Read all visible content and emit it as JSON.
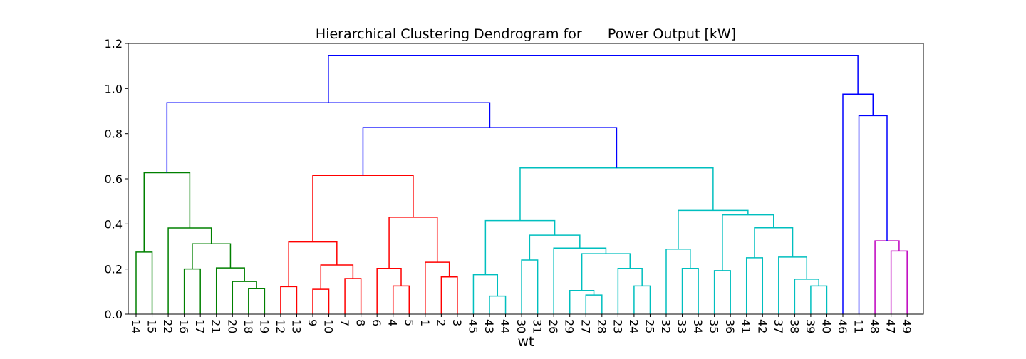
{
  "chart_data": {
    "type": "dendrogram",
    "title": "Hierarchical Clustering Dendrogram for      Power Output [kW]",
    "xlabel": "wt",
    "ylabel": "",
    "ylim": [
      0,
      1.2
    ],
    "yticks": [
      0.0,
      0.2,
      0.4,
      0.6,
      0.8,
      1.0,
      1.2
    ],
    "grid": false,
    "leaves": [
      "14",
      "15",
      "22",
      "16",
      "17",
      "21",
      "20",
      "18",
      "19",
      "12",
      "13",
      "9",
      "10",
      "7",
      "8",
      "6",
      "4",
      "5",
      "1",
      "2",
      "3",
      "45",
      "43",
      "44",
      "30",
      "31",
      "26",
      "29",
      "27",
      "28",
      "23",
      "24",
      "25",
      "32",
      "33",
      "34",
      "35",
      "36",
      "41",
      "42",
      "37",
      "38",
      "39",
      "40",
      "46",
      "11",
      "48",
      "47",
      "49"
    ],
    "colors": {
      "green": "#008000",
      "red": "#ff0000",
      "cyan": "#00bfbf",
      "magenta": "#bf00bf",
      "blue": "#0000ff"
    },
    "merges": [
      {
        "id": "A",
        "left": "14",
        "right": "15",
        "height": 0.275,
        "color": "green"
      },
      {
        "id": "B",
        "left": "16",
        "right": "17",
        "height": 0.2,
        "color": "green"
      },
      {
        "id": "C",
        "left": "18",
        "right": "19",
        "height": 0.113,
        "color": "green"
      },
      {
        "id": "D",
        "left": "20",
        "right": "C",
        "height": 0.145,
        "color": "green"
      },
      {
        "id": "E",
        "left": "21",
        "right": "D",
        "height": 0.205,
        "color": "green"
      },
      {
        "id": "F",
        "left": "B",
        "right": "E",
        "height": 0.312,
        "color": "green"
      },
      {
        "id": "G",
        "left": "22",
        "right": "F",
        "height": 0.382,
        "color": "green"
      },
      {
        "id": "H",
        "left": "A",
        "right": "G",
        "height": 0.627,
        "color": "green"
      },
      {
        "id": "I",
        "left": "12",
        "right": "13",
        "height": 0.122,
        "color": "red"
      },
      {
        "id": "J",
        "left": "9",
        "right": "10",
        "height": 0.11,
        "color": "red"
      },
      {
        "id": "K",
        "left": "7",
        "right": "8",
        "height": 0.158,
        "color": "red"
      },
      {
        "id": "L",
        "left": "J",
        "right": "K",
        "height": 0.218,
        "color": "red"
      },
      {
        "id": "M",
        "left": "I",
        "right": "L",
        "height": 0.32,
        "color": "red"
      },
      {
        "id": "N",
        "left": "4",
        "right": "5",
        "height": 0.125,
        "color": "red"
      },
      {
        "id": "O",
        "left": "6",
        "right": "N",
        "height": 0.203,
        "color": "red"
      },
      {
        "id": "P",
        "left": "2",
        "right": "3",
        "height": 0.165,
        "color": "red"
      },
      {
        "id": "Q",
        "left": "1",
        "right": "P",
        "height": 0.23,
        "color": "red"
      },
      {
        "id": "R",
        "left": "O",
        "right": "Q",
        "height": 0.43,
        "color": "red"
      },
      {
        "id": "S",
        "left": "M",
        "right": "R",
        "height": 0.615,
        "color": "red"
      },
      {
        "id": "T",
        "left": "43",
        "right": "44",
        "height": 0.08,
        "color": "cyan"
      },
      {
        "id": "U",
        "left": "45",
        "right": "T",
        "height": 0.175,
        "color": "cyan"
      },
      {
        "id": "V",
        "left": "30",
        "right": "31",
        "height": 0.24,
        "color": "cyan"
      },
      {
        "id": "W",
        "left": "27",
        "right": "28",
        "height": 0.085,
        "color": "cyan"
      },
      {
        "id": "X",
        "left": "29",
        "right": "W",
        "height": 0.105,
        "color": "cyan"
      },
      {
        "id": "Y",
        "left": "24",
        "right": "25",
        "height": 0.125,
        "color": "cyan"
      },
      {
        "id": "Z",
        "left": "23",
        "right": "Y",
        "height": 0.203,
        "color": "cyan"
      },
      {
        "id": "AA",
        "left": "X",
        "right": "Z",
        "height": 0.268,
        "color": "cyan"
      },
      {
        "id": "AB",
        "left": "26",
        "right": "AA",
        "height": 0.293,
        "color": "cyan"
      },
      {
        "id": "AC",
        "left": "V",
        "right": "AB",
        "height": 0.35,
        "color": "cyan"
      },
      {
        "id": "AD",
        "left": "U",
        "right": "AC",
        "height": 0.415,
        "color": "cyan"
      },
      {
        "id": "AE",
        "left": "33",
        "right": "34",
        "height": 0.203,
        "color": "cyan"
      },
      {
        "id": "AF",
        "left": "32",
        "right": "AE",
        "height": 0.288,
        "color": "cyan"
      },
      {
        "id": "AG",
        "left": "35",
        "right": "36",
        "height": 0.193,
        "color": "cyan"
      },
      {
        "id": "AH",
        "left": "41",
        "right": "42",
        "height": 0.25,
        "color": "cyan"
      },
      {
        "id": "AI",
        "left": "39",
        "right": "40",
        "height": 0.125,
        "color": "cyan"
      },
      {
        "id": "AJ",
        "left": "38",
        "right": "AI",
        "height": 0.155,
        "color": "cyan"
      },
      {
        "id": "AK",
        "left": "37",
        "right": "AJ",
        "height": 0.253,
        "color": "cyan"
      },
      {
        "id": "AL",
        "left": "AH",
        "right": "AK",
        "height": 0.383,
        "color": "cyan"
      },
      {
        "id": "AM",
        "left": "AG",
        "right": "AL",
        "height": 0.44,
        "color": "cyan"
      },
      {
        "id": "AN",
        "left": "AF",
        "right": "AM",
        "height": 0.46,
        "color": "cyan"
      },
      {
        "id": "AO",
        "left": "AD",
        "right": "AN",
        "height": 0.648,
        "color": "cyan"
      },
      {
        "id": "AP",
        "left": "S",
        "right": "AO",
        "height": 0.827,
        "color": "blue"
      },
      {
        "id": "AQ",
        "left": "H",
        "right": "AP",
        "height": 0.937,
        "color": "blue"
      },
      {
        "id": "AR",
        "left": "47",
        "right": "49",
        "height": 0.28,
        "color": "magenta"
      },
      {
        "id": "AS",
        "left": "48",
        "right": "AR",
        "height": 0.325,
        "color": "magenta"
      },
      {
        "id": "AT",
        "left": "11",
        "right": "AS",
        "height": 0.88,
        "color": "blue"
      },
      {
        "id": "AU",
        "left": "46",
        "right": "AT",
        "height": 0.975,
        "color": "blue"
      },
      {
        "id": "AV",
        "left": "AQ",
        "right": "AU",
        "height": 1.147,
        "color": "blue"
      }
    ]
  }
}
